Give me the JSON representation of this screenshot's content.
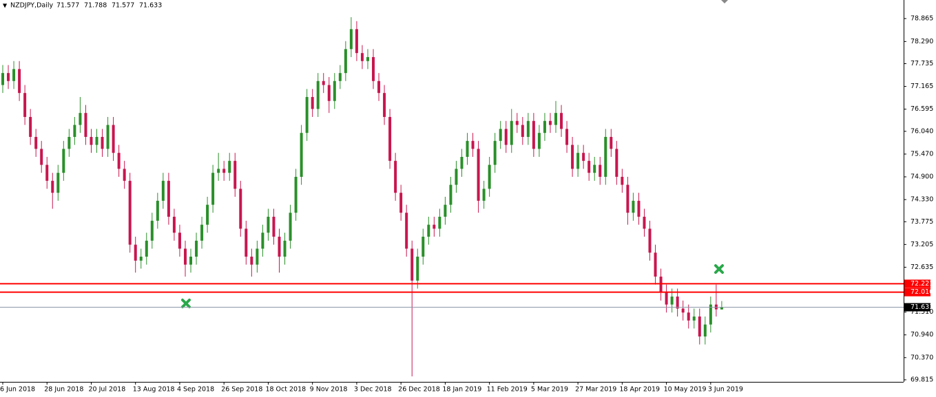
{
  "chart_data": {
    "type": "candlestick",
    "title": "NZDJPY,Daily",
    "ohlc": [
      71.577,
      71.788,
      71.577,
      71.633
    ],
    "categories": [
      "6 Jun 2018",
      null,
      null,
      null,
      null,
      null,
      null,
      null,
      "28 Jun 2018",
      null,
      null,
      null,
      null,
      null,
      null,
      null,
      "20 Jul 2018",
      null,
      null,
      null,
      null,
      null,
      null,
      null,
      "13 Aug 2018",
      null,
      null,
      null,
      null,
      null,
      null,
      null,
      "4 Sep 2018",
      null,
      null,
      null,
      null,
      null,
      null,
      null,
      "26 Sep 2018",
      null,
      null,
      null,
      null,
      null,
      null,
      null,
      "18 Oct 2018",
      null,
      null,
      null,
      null,
      null,
      null,
      null,
      "9 Nov 2018",
      null,
      null,
      null,
      null,
      null,
      null,
      null,
      "3 Dec 2018",
      null,
      null,
      null,
      null,
      null,
      null,
      null,
      "26 Dec 2018",
      null,
      null,
      null,
      null,
      null,
      null,
      null,
      "18 Jan 2019",
      null,
      null,
      null,
      null,
      null,
      null,
      null,
      "11 Feb 2019",
      null,
      null,
      null,
      null,
      null,
      null,
      null,
      "5 Mar 2019",
      null,
      null,
      null,
      null,
      null,
      null,
      null,
      "27 Mar 2019",
      null,
      null,
      null,
      null,
      null,
      null,
      null,
      "18 Apr 2019",
      null,
      null,
      null,
      null,
      null,
      null,
      null,
      "10 May 2019",
      null,
      null,
      null,
      null,
      null,
      null,
      null,
      "3 Jun 2019",
      null,
      null
    ],
    "open": [
      77.2,
      77.5,
      77.3,
      77.6,
      77.0,
      76.4,
      75.9,
      75.6,
      75.2,
      74.8,
      74.5,
      75.0,
      75.6,
      75.9,
      76.2,
      76.5,
      75.9,
      75.7,
      75.9,
      75.6,
      76.2,
      75.5,
      75.1,
      74.8,
      73.2,
      72.8,
      72.9,
      73.3,
      73.8,
      74.3,
      74.8,
      73.9,
      73.5,
      73.1,
      72.7,
      72.9,
      73.3,
      73.7,
      74.2,
      75.0,
      75.1,
      75.0,
      75.3,
      74.6,
      73.6,
      72.9,
      72.7,
      73.1,
      73.5,
      73.9,
      73.4,
      72.9,
      73.3,
      74.0,
      74.9,
      76.0,
      76.9,
      76.6,
      77.3,
      77.2,
      76.8,
      77.3,
      77.5,
      78.1,
      78.6,
      78.0,
      77.8,
      77.9,
      77.3,
      77.0,
      76.4,
      75.3,
      74.5,
      74.0,
      73.1,
      72.3,
      72.9,
      73.4,
      73.7,
      73.6,
      73.9,
      74.2,
      74.7,
      75.1,
      75.4,
      75.8,
      75.6,
      74.3,
      74.6,
      75.2,
      75.8,
      76.1,
      75.7,
      76.3,
      76.2,
      75.9,
      76.3,
      75.6,
      76.0,
      76.3,
      76.2,
      76.5,
      76.1,
      75.7,
      75.1,
      75.5,
      75.3,
      75.0,
      75.2,
      74.9,
      75.9,
      75.6,
      74.9,
      74.7,
      74.0,
      74.3,
      73.9,
      73.6,
      73.0,
      72.4,
      72.0,
      71.7,
      71.9,
      71.6,
      71.5,
      71.3,
      71.4,
      70.9,
      71.2,
      71.7,
      71.577
    ],
    "high": [
      77.7,
      77.7,
      77.8,
      77.8,
      77.2,
      76.6,
      76.1,
      75.8,
      75.4,
      75.0,
      75.2,
      75.8,
      76.1,
      76.4,
      76.9,
      76.7,
      76.1,
      76.1,
      76.1,
      76.4,
      76.4,
      75.7,
      75.3,
      75.0,
      73.4,
      73.1,
      73.5,
      74.0,
      74.5,
      75.0,
      75.0,
      74.1,
      73.7,
      73.3,
      73.1,
      73.5,
      73.9,
      74.4,
      75.2,
      75.5,
      75.3,
      75.5,
      75.5,
      74.8,
      73.8,
      73.1,
      73.3,
      73.7,
      74.1,
      74.1,
      73.6,
      73.5,
      74.2,
      75.1,
      76.2,
      77.1,
      77.1,
      77.5,
      77.5,
      77.4,
      77.5,
      77.7,
      78.3,
      78.9,
      78.8,
      78.2,
      78.1,
      78.1,
      77.5,
      77.2,
      76.6,
      75.5,
      74.7,
      74.2,
      73.3,
      73.1,
      73.6,
      73.9,
      73.9,
      74.1,
      74.4,
      74.9,
      75.3,
      75.6,
      76.0,
      76.0,
      75.8,
      74.8,
      75.4,
      76.0,
      76.3,
      76.3,
      76.6,
      76.5,
      76.4,
      76.5,
      76.5,
      76.2,
      76.5,
      76.5,
      76.8,
      76.7,
      76.3,
      75.9,
      75.7,
      75.7,
      75.5,
      75.4,
      75.4,
      76.1,
      76.1,
      75.8,
      75.1,
      74.9,
      74.5,
      74.5,
      74.1,
      73.8,
      73.2,
      72.6,
      72.2,
      72.1,
      72.1,
      71.8,
      71.7,
      71.6,
      71.6,
      71.4,
      71.9,
      72.2,
      71.788
    ],
    "low": [
      77.0,
      77.1,
      77.1,
      76.8,
      76.2,
      75.7,
      75.4,
      75.0,
      74.6,
      74.1,
      74.3,
      74.8,
      75.4,
      75.7,
      76.0,
      75.7,
      75.5,
      75.5,
      75.4,
      75.4,
      75.3,
      74.9,
      74.6,
      73.0,
      72.5,
      72.6,
      72.7,
      73.1,
      73.6,
      74.1,
      73.7,
      73.3,
      72.9,
      72.4,
      72.5,
      72.7,
      73.1,
      73.5,
      74.0,
      74.8,
      74.8,
      74.8,
      74.4,
      73.4,
      72.7,
      72.4,
      72.5,
      72.9,
      73.3,
      73.2,
      72.5,
      72.7,
      73.1,
      73.8,
      74.7,
      75.8,
      76.4,
      76.4,
      77.0,
      76.5,
      76.6,
      77.1,
      77.3,
      77.9,
      77.8,
      77.6,
      77.6,
      77.1,
      76.8,
      76.2,
      75.1,
      74.3,
      73.8,
      72.9,
      69.9,
      72.1,
      72.7,
      73.2,
      73.4,
      73.4,
      73.7,
      74.0,
      74.5,
      74.9,
      75.2,
      75.4,
      74.0,
      74.1,
      74.4,
      75.0,
      75.6,
      75.5,
      75.5,
      76.0,
      75.7,
      75.7,
      75.4,
      75.4,
      75.8,
      76.0,
      76.0,
      75.9,
      75.5,
      74.9,
      74.9,
      75.1,
      74.8,
      74.8,
      74.7,
      74.7,
      75.4,
      74.7,
      74.5,
      73.7,
      73.8,
      73.7,
      73.4,
      72.8,
      72.2,
      71.8,
      71.5,
      71.5,
      71.4,
      71.3,
      71.1,
      71.1,
      70.7,
      70.7,
      71.0,
      71.4,
      71.577
    ],
    "close": [
      77.5,
      77.3,
      77.6,
      77.0,
      76.4,
      75.9,
      75.6,
      75.2,
      74.8,
      74.5,
      75.0,
      75.6,
      75.9,
      76.2,
      76.5,
      75.9,
      75.7,
      75.9,
      75.6,
      76.2,
      75.5,
      75.1,
      74.8,
      73.2,
      72.8,
      72.9,
      73.3,
      73.8,
      74.3,
      74.8,
      73.9,
      73.5,
      73.1,
      72.7,
      72.9,
      73.3,
      73.7,
      74.2,
      75.0,
      75.1,
      75.0,
      75.3,
      74.6,
      73.6,
      72.9,
      72.7,
      73.1,
      73.5,
      73.9,
      73.4,
      72.9,
      73.3,
      74.0,
      74.9,
      76.0,
      76.9,
      76.6,
      77.3,
      77.2,
      76.8,
      77.3,
      77.5,
      78.1,
      78.6,
      78.0,
      77.8,
      77.9,
      77.3,
      77.0,
      76.4,
      75.3,
      74.5,
      74.0,
      73.1,
      72.3,
      72.9,
      73.4,
      73.7,
      73.6,
      73.9,
      74.2,
      74.7,
      75.1,
      75.4,
      75.8,
      75.6,
      74.3,
      74.6,
      75.2,
      75.8,
      76.1,
      75.7,
      76.3,
      76.2,
      75.9,
      76.3,
      75.6,
      76.0,
      76.3,
      76.2,
      76.5,
      76.1,
      75.7,
      75.1,
      75.5,
      75.3,
      75.0,
      75.2,
      74.9,
      75.9,
      75.6,
      74.9,
      74.7,
      74.0,
      74.3,
      73.9,
      73.6,
      73.0,
      72.4,
      72.0,
      71.7,
      71.9,
      71.6,
      71.5,
      71.3,
      71.4,
      70.9,
      71.2,
      71.7,
      71.58,
      71.633
    ],
    "up_color": "#2a8f2a",
    "down_color": "#c8164f",
    "ylim": [
      69.763,
      79.33
    ],
    "yticks": [
      78.865,
      {
        "value": 78.29,
        "label": "78.290"
      },
      77.735,
      77.165,
      76.595,
      {
        "value": 76.04,
        "label": "76.040"
      },
      {
        "value": 75.47,
        "label": "75.470"
      },
      {
        "value": 74.9,
        "label": "74.900"
      },
      {
        "value": 74.33,
        "label": "74.330"
      },
      73.775,
      73.205,
      72.635,
      {
        "value": 71.51,
        "label": "71.510"
      },
      {
        "value": 70.94,
        "label": "70.940"
      },
      {
        "value": 70.37,
        "label": "70.370"
      },
      69.815
    ],
    "hlines": [
      {
        "value": 72.221,
        "color": "#ff0000"
      },
      {
        "value": 72.01,
        "label": "72.010",
        "color": "#ff0000"
      },
      {
        "value": 71.633,
        "color": "#000000"
      }
    ],
    "grid": false
  }
}
